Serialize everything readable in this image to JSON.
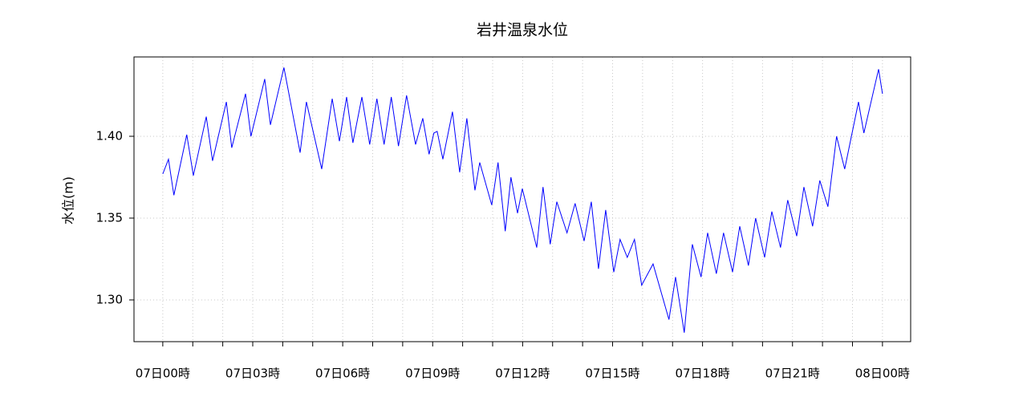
{
  "chart_data": {
    "type": "line",
    "title": "岩井温泉水位",
    "y_label": "水位(m)",
    "x": [
      0,
      0.19,
      0.37,
      0.8,
      1.02,
      1.45,
      1.66,
      2.12,
      2.3,
      2.76,
      2.94,
      3.4,
      3.59,
      4.04,
      4.58,
      4.79,
      5.3,
      5.65,
      5.89,
      6.13,
      6.34,
      6.64,
      6.9,
      7.14,
      7.38,
      7.62,
      7.86,
      8.13,
      8.43,
      8.67,
      8.88,
      9.04,
      9.15,
      9.34,
      9.66,
      9.9,
      10.14,
      10.41,
      10.57,
      10.97,
      11.18,
      11.42,
      11.61,
      11.83,
      11.99,
      12.47,
      12.68,
      12.92,
      13.14,
      13.48,
      13.75,
      14.05,
      14.29,
      14.53,
      14.77,
      15.04,
      15.25,
      15.49,
      15.73,
      15.97,
      16.35,
      16.88,
      17.1,
      17.39,
      17.66,
      17.95,
      18.17,
      18.46,
      18.7,
      19.0,
      19.24,
      19.53,
      19.77,
      20.07,
      20.31,
      20.6,
      20.84,
      21.14,
      21.38,
      21.67,
      21.91,
      22.18,
      22.47,
      22.74,
      23.2,
      23.38,
      23.87,
      24.0
    ],
    "series": [
      {
        "name": "水位",
        "color": "#0000ff",
        "values": [
          1.377,
          1.386,
          1.364,
          1.401,
          1.376,
          1.412,
          1.385,
          1.421,
          1.393,
          1.426,
          1.4,
          1.435,
          1.407,
          1.442,
          1.39,
          1.421,
          1.38,
          1.423,
          1.397,
          1.424,
          1.396,
          1.424,
          1.395,
          1.423,
          1.395,
          1.424,
          1.394,
          1.425,
          1.395,
          1.411,
          1.389,
          1.402,
          1.403,
          1.386,
          1.415,
          1.378,
          1.411,
          1.367,
          1.384,
          1.358,
          1.384,
          1.342,
          1.375,
          1.353,
          1.368,
          1.332,
          1.369,
          1.334,
          1.36,
          1.341,
          1.359,
          1.336,
          1.36,
          1.319,
          1.355,
          1.317,
          1.337,
          1.326,
          1.337,
          1.309,
          1.322,
          1.288,
          1.314,
          1.28,
          1.334,
          1.314,
          1.341,
          1.316,
          1.341,
          1.317,
          1.345,
          1.321,
          1.35,
          1.326,
          1.354,
          1.332,
          1.361,
          1.339,
          1.369,
          1.345,
          1.373,
          1.357,
          1.4,
          1.38,
          1.421,
          1.402,
          1.441,
          1.426
        ]
      }
    ],
    "xlim": [
      -0.96,
      24.94
    ],
    "xticks": [
      {
        "value": 0,
        "label": "07日00時"
      },
      {
        "value": 3,
        "label": "07日03時"
      },
      {
        "value": 6,
        "label": "07日06時"
      },
      {
        "value": 9,
        "label": "07日09時"
      },
      {
        "value": 12,
        "label": "07日12時"
      },
      {
        "value": 15,
        "label": "07日15時"
      },
      {
        "value": 18,
        "label": "07日18時"
      },
      {
        "value": 21,
        "label": "07日21時"
      },
      {
        "value": 24,
        "label": "08日00時"
      }
    ],
    "x_minor_ticks": [
      1,
      2,
      4,
      5,
      7,
      8,
      10,
      11,
      13,
      14,
      16,
      17,
      19,
      20,
      22,
      23
    ],
    "ylim": [
      1.2745,
      1.4485
    ],
    "yticks": [
      {
        "value": 1.3,
        "label": "1.30"
      },
      {
        "value": 1.35,
        "label": "1.35"
      },
      {
        "value": 1.4,
        "label": "1.40"
      }
    ],
    "grid": true
  }
}
